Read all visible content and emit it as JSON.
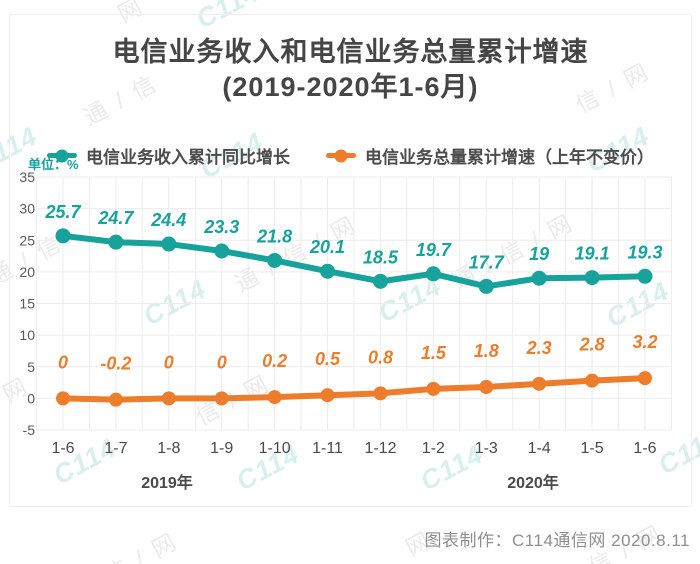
{
  "title": {
    "line1": "电信业务收入和电信业务总量累计增速",
    "line2": "(2019-2020年1-6月)"
  },
  "unit_label": "单位：%",
  "legend": [
    {
      "label": "电信业务收入累计同比增长",
      "color": "#17A29C"
    },
    {
      "label": "电信业务总量累计增速（上年不变价）",
      "color": "#ED7C2B"
    }
  ],
  "credit": "图表制作：C114通信网  2020.8.11",
  "watermark": {
    "w1": "通 / 信",
    "w2": "信 / 网",
    "w3": "通 / 信 / 网",
    "w4": "网",
    "logo": "C114"
  },
  "colors": {
    "teal": "#17A29C",
    "orange": "#ED7C2B",
    "title_text": "#454545",
    "axis_text": "#595959",
    "grid": "#ececec",
    "credit_text": "#8f8f8f"
  },
  "chart_data": {
    "type": "line",
    "categories": [
      "1-6",
      "1-7",
      "1-8",
      "1-9",
      "1-10",
      "1-11",
      "1-12",
      "1-2",
      "1-3",
      "1-4",
      "1-5",
      "1-6"
    ],
    "series": [
      {
        "name": "电信业务收入累计同比增长",
        "color": "#17A29C",
        "values": [
          25.7,
          24.7,
          24.4,
          23.3,
          21.8,
          20.1,
          18.5,
          19.7,
          17.7,
          19,
          19.1,
          19.3
        ]
      },
      {
        "name": "电信业务总量累计增速（上年不变价）",
        "color": "#ED7C2B",
        "values": [
          0,
          -0.2,
          0,
          0,
          0.2,
          0.5,
          0.8,
          1.5,
          1.8,
          2.3,
          2.8,
          3.2
        ]
      }
    ],
    "year_groups": [
      {
        "label": "2019年"
      },
      {
        "label": "2020年"
      }
    ],
    "title": "电信业务收入和电信业务总量累计增速(2019-2020年1-6月)",
    "xlabel": "",
    "ylabel": "单位：%",
    "ylim": [
      -5,
      35
    ],
    "yticks": [
      35,
      30,
      25,
      20,
      15,
      10,
      5,
      0,
      -5
    ],
    "grid": true,
    "legend_position": "top",
    "data_labels": true
  }
}
